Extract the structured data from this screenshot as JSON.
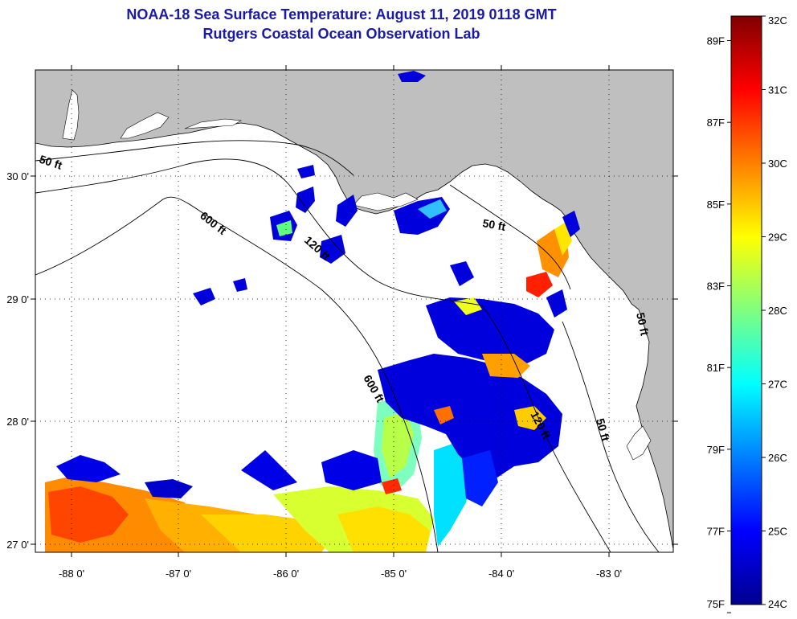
{
  "title": {
    "line1": "NOAA-18 Sea Surface Temperature:  August 11, 2019 0118 GMT",
    "line2": "Rutgers Coastal Ocean Observation Lab"
  },
  "map": {
    "x_ticks": [
      "-88 0'",
      "-87 0'",
      "-86 0'",
      "-85 0'",
      "-84 0'",
      "-83 0'"
    ],
    "y_ticks": [
      "30 0'",
      "29 0'",
      "28 0'",
      "27 0'"
    ],
    "contour_labels": {
      "c50_west": "50 ft",
      "c600_north": "600 ft",
      "c120_north": "120 ft",
      "c50_bigbend": "50 ft",
      "c600_south": "600 ft",
      "c120_south": "120 ft",
      "c50_south": "50 ft",
      "c50_east": "50 ft"
    },
    "colors": {
      "land": "#bfbfbf",
      "ocean_nodata": "#ffffff"
    }
  },
  "colorbar": {
    "fahrenheit_labels": [
      "89F",
      "87F",
      "85F",
      "83F",
      "81F",
      "79F",
      "77F",
      "75F"
    ],
    "celsius_labels": [
      "32C",
      "31C",
      "30C",
      "29C",
      "28C",
      "27C",
      "26C",
      "25C",
      "24C"
    ],
    "min_c": 24,
    "max_c": 32
  }
}
